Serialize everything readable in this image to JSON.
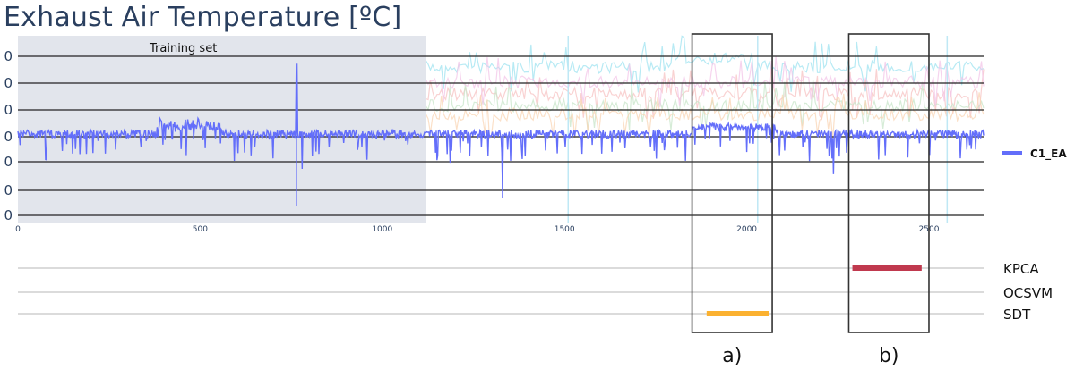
{
  "title": "Exhaust Air Temperature [ºC]",
  "colors": {
    "series_main": "#636efa",
    "training_band": "#e2e5ec",
    "ghost_series": [
      "#9fe3f0",
      "#f7c3c3",
      "#c8e6c9",
      "#f9d6b5",
      "#f3c6e8"
    ],
    "box_stroke": "#333333",
    "kpca": "#c0394e",
    "sdt": "#fbb130",
    "axis_text": "#2a3f5f",
    "grid_dark": "#222222",
    "track_line": "#cfcfcf"
  },
  "training_label": "Training set",
  "chart_data": [
    {
      "type": "line",
      "title": "Exhaust Air Temperature [ºC]",
      "xlim": [
        0,
        2650
      ],
      "x_ticks": [
        0,
        500,
        1000,
        1500,
        2000,
        2500
      ],
      "y_tick_labels": [
        "0",
        "0",
        "0",
        "0",
        "0",
        "0",
        "0"
      ],
      "training_set_range": [
        0,
        1120
      ],
      "series": [
        {
          "name": "C1_EA",
          "baseline": 0.5,
          "spikes": [
            {
              "x": 765,
              "value": 3.0
            },
            {
              "x": 780,
              "value": -1.5
            },
            {
              "x": 1330,
              "value": -2.4
            }
          ]
        }
      ],
      "legend": "right"
    },
    {
      "type": "bar",
      "tracks": [
        "KPCA",
        "OCSVM",
        "SDT"
      ],
      "detections": [
        {
          "track": "KPCA",
          "x": [
            2290,
            2480
          ]
        },
        {
          "track": "SDT",
          "x": [
            1890,
            2060
          ]
        }
      ]
    }
  ],
  "annotations": [
    {
      "label": "a)",
      "x_range": [
        1850,
        2070
      ]
    },
    {
      "label": "b)",
      "x_range": [
        2280,
        2500
      ]
    }
  ]
}
